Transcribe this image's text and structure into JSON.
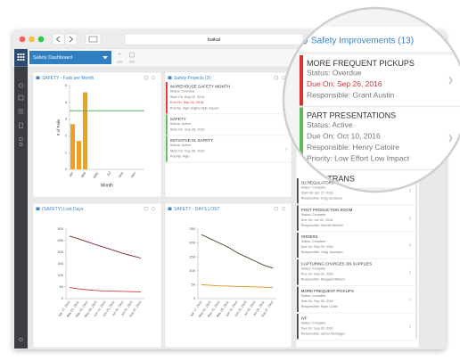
{
  "window": {
    "title": "baikal"
  },
  "toolbar": {
    "dashboard": "Safety Dashboard",
    "add": "add",
    "edit": "edit"
  },
  "chart_data": [
    {
      "type": "bar",
      "title": "SAFETY - Fails per Month",
      "ylabel": "# of Fails",
      "xlabel": "Month",
      "categories": [
        "Jan",
        null,
        "Mar",
        null,
        "May",
        null,
        "Jul",
        null,
        "Sep",
        null,
        "Nov",
        null
      ],
      "values": [
        2.7,
        1.7,
        4.6,
        null,
        null,
        null,
        null,
        null,
        null,
        null,
        null,
        null
      ],
      "color": "#f0a020",
      "target": 3.5,
      "target_color": "#3cb043",
      "ylim": [
        0,
        5
      ],
      "yticks": [
        0,
        1,
        2,
        3,
        4,
        5
      ]
    },
    {
      "type": "line",
      "title": "(SAFETY) Lost Days",
      "categories": [
        "Apr 17, 2016",
        "May 01, 2016",
        "May 15, 2016",
        "May 29, 2016",
        "Jun 12, 2016",
        "Jun 26, 2016",
        "Jul 10, 2016",
        "Jul 24, 2016",
        "Aug 07, 2016"
      ],
      "series": [
        {
          "color": "#7a1f24",
          "values": [
            270,
            258,
            245,
            232,
            220,
            208,
            195,
            185,
            175
          ]
        },
        {
          "color": "#d23a3a",
          "values": [
            48,
            42,
            38,
            35,
            33,
            32,
            31,
            30,
            29
          ]
        }
      ],
      "ylim": [
        0,
        300
      ],
      "yticks": [
        0,
        50,
        100,
        150,
        200,
        250,
        300
      ]
    },
    {
      "type": "line",
      "title": "SAFETY - DAYS LOST",
      "categories": [
        "Apr 17, 2016",
        "May 01, 2016",
        "May 15, 2016",
        "May 29, 2016",
        "Jun 12, 2016",
        "Jun 26, 2016",
        "Jul 10, 2016",
        "Jul 24, 2016",
        "Aug 07, 2016"
      ],
      "series": [
        {
          "color": "#2c4a1e",
          "values": [
            230,
            215,
            200,
            185,
            165,
            150,
            135,
            120,
            110
          ]
        },
        {
          "color": "#d9901e",
          "values": [
            50,
            48,
            46,
            45,
            44,
            43,
            42,
            41,
            40
          ]
        }
      ],
      "ylim": [
        0,
        250
      ],
      "yticks": [
        0,
        50,
        100,
        150,
        200,
        250
      ]
    }
  ],
  "projects": {
    "title": "Safety Projects (3)",
    "items": [
      {
        "title": "WAREHOUSE SAFETY MONTH",
        "color": "#d93030",
        "lines": [
          {
            "text": "Status: Overdue"
          },
          {
            "text": "Start On: Aug 02, 2016"
          },
          {
            "text": "End On: Sep 01, 2016",
            "color": "#d93030"
          },
          {
            "text": "Priority: High (High) High Impact"
          }
        ]
      },
      {
        "title": "SAFETY",
        "color": "#5cb85c",
        "lines": [
          {
            "text": "Status: Active"
          },
          {
            "text": "Start On: Sep 28, 2016"
          }
        ]
      },
      {
        "title": "INITIATIVE 01 SAFETY",
        "color": "#5cb85c",
        "lines": [
          {
            "text": "Status: Active"
          },
          {
            "text": "Start On: Sep 08, 2016"
          },
          {
            "text": "Priority: High"
          }
        ]
      }
    ]
  },
  "improvements_list": {
    "items": [
      {
        "title": "O2 REGULATORS",
        "color": "#444444",
        "lines": [
          {
            "text": "Status: Complete"
          },
          {
            "text": "Start On: Apr 27, 2016"
          },
          {
            "text": "Responsible: Greg Jacobson"
          }
        ]
      },
      {
        "title": "POST PRODUCTION ROOM",
        "color": "#444444",
        "lines": [
          {
            "text": "Status: Complete"
          },
          {
            "text": "Due On: Jun 02, 2016"
          },
          {
            "text": "Responsible: Harriett Mitchell"
          }
        ]
      },
      {
        "title": "ORDERS",
        "color": "#444444",
        "lines": [
          {
            "text": "Status: Complete"
          },
          {
            "text": "Due On: Sep 09, 2016"
          },
          {
            "text": "Responsible: Craig Jacobson"
          }
        ]
      },
      {
        "title": "CAPTURING CHARGES ON SUPPLIES",
        "color": "#444444",
        "lines": [
          {
            "text": "Status: Complete"
          },
          {
            "text": "Due On: Sep 09, 2016"
          },
          {
            "text": "Responsible: Margaret Winters"
          }
        ]
      },
      {
        "title": "MORE FREQUENT PICKUPS",
        "color": "#444444",
        "lines": [
          {
            "text": "Status: Complete"
          },
          {
            "text": "Due On: Sep 26, 2016"
          },
          {
            "text": "Responsible: Ryan Conlin"
          }
        ]
      },
      {
        "title": "IVF",
        "color": "#444444",
        "lines": [
          {
            "text": "Status: Complete"
          },
          {
            "text": "Due On: Sep 28, 2016"
          },
          {
            "text": "Responsible: James Montague"
          }
        ]
      }
    ]
  },
  "magnifier": {
    "title": "Safety Improvements (13)",
    "items": [
      {
        "title": "MORE FREQUENT PICKUPS",
        "color": "#d93030",
        "lines": [
          {
            "text": "Status: Overdue"
          },
          {
            "text": "Due On: Sep 26, 2016",
            "color": "#d93030"
          },
          {
            "text": "Responsible: Grant Austin"
          }
        ]
      },
      {
        "title": "PART PRESENTATIONS",
        "color": "#5cb85c",
        "lines": [
          {
            "text": "Status: Active"
          },
          {
            "text": "Due On: Oct 10, 2016"
          },
          {
            "text": "Responsible: Henry Catoire"
          },
          {
            "text": "Priority: Low Effort Low Impact"
          }
        ]
      },
      {
        "title": "E OF TRANS",
        "color": "#444444",
        "lines": []
      }
    ]
  }
}
